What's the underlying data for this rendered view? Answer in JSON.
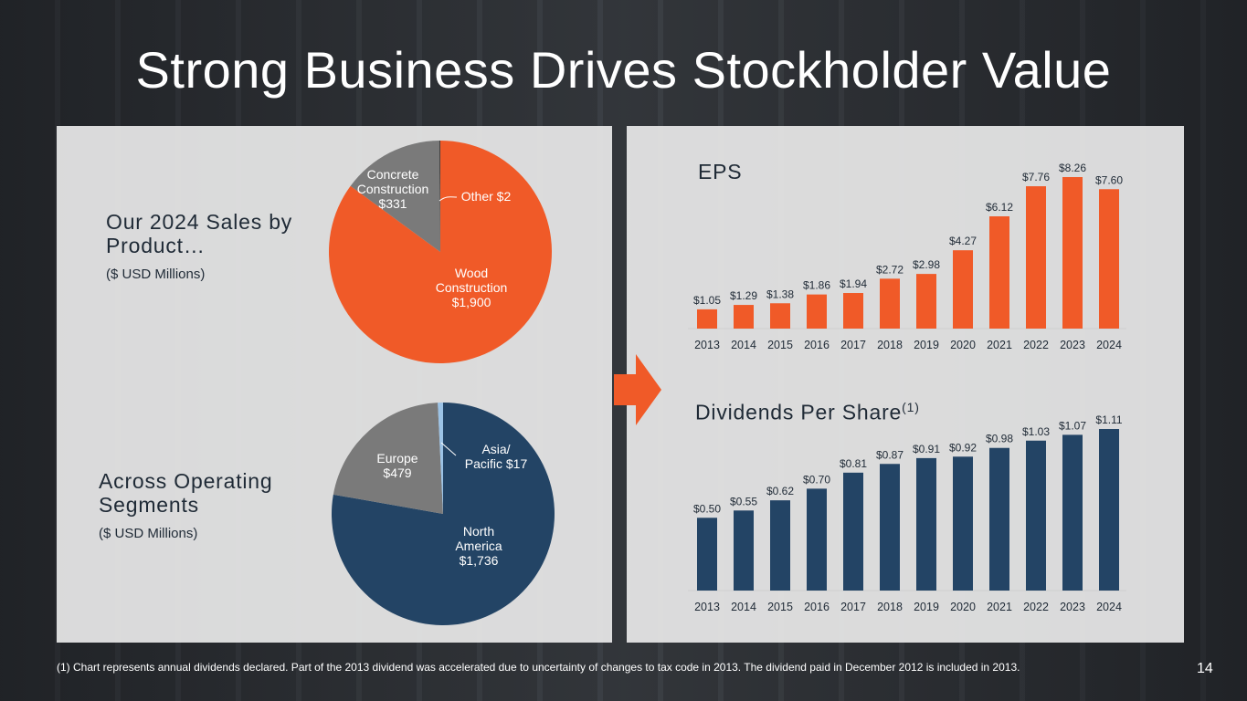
{
  "title": "Strong Business Drives Stockholder Value",
  "left": {
    "sales_heading": "Our 2024 Sales by Product…",
    "sales_unit": "($ USD Millions)",
    "segments_heading": "Across Operating Segments",
    "segments_unit": "($ USD Millions)"
  },
  "right": {
    "eps_title": "EPS",
    "dps_title": "Dividends Per Share",
    "dps_title_sup": "(1)"
  },
  "footnote": "(1) Chart represents annual dividends declared. Part of the 2013 dividend was accelerated due to uncertainty of changes to tax code in 2013. The dividend paid in December 2012 is included in 2013.",
  "page_number": "14",
  "colors": {
    "orange": "#f05a28",
    "navy": "#234465",
    "gray": "#7a7a7a",
    "light_blue": "#9cc3e6",
    "black": "#111111"
  },
  "chart_data": [
    {
      "type": "pie",
      "title": "Our 2024 Sales by Product…",
      "slices": [
        {
          "label": "Wood Construction",
          "value": 1900,
          "value_label": "$1,900",
          "color": "#f05a28"
        },
        {
          "label": "Concrete Construction",
          "value": 331,
          "value_label": "$331",
          "color": "#7a7a7a"
        },
        {
          "label": "Other",
          "value": 2,
          "value_label": "$2",
          "color": "#111111"
        }
      ]
    },
    {
      "type": "pie",
      "title": "Across Operating Segments",
      "slices": [
        {
          "label": "North America",
          "value": 1736,
          "value_label": "$1,736",
          "color": "#234465"
        },
        {
          "label": "Europe",
          "value": 479,
          "value_label": "$479",
          "color": "#7a7a7a"
        },
        {
          "label": "Asia/ Pacific",
          "value": 17,
          "value_label": "$17",
          "color": "#9cc3e6"
        }
      ]
    },
    {
      "type": "bar",
      "title": "EPS",
      "categories": [
        "2013",
        "2014",
        "2015",
        "2016",
        "2017",
        "2018",
        "2019",
        "2020",
        "2021",
        "2022",
        "2023",
        "2024"
      ],
      "values": [
        1.05,
        1.29,
        1.38,
        1.86,
        1.94,
        2.72,
        2.98,
        4.27,
        6.12,
        7.76,
        8.26,
        7.6
      ],
      "labels": [
        "$1.05",
        "$1.29",
        "$1.38",
        "$1.86",
        "$1.94",
        "$2.72",
        "$2.98",
        "$4.27",
        "$6.12",
        "$7.76",
        "$8.26",
        "$7.60"
      ],
      "color": "#f05a28"
    },
    {
      "type": "bar",
      "title": "Dividends Per Share",
      "categories": [
        "2013",
        "2014",
        "2015",
        "2016",
        "2017",
        "2018",
        "2019",
        "2020",
        "2021",
        "2022",
        "2023",
        "2024"
      ],
      "values": [
        0.5,
        0.55,
        0.62,
        0.7,
        0.81,
        0.87,
        0.91,
        0.92,
        0.98,
        1.03,
        1.07,
        1.11
      ],
      "labels": [
        "$0.50",
        "$0.55",
        "$0.62",
        "$0.70",
        "$0.81",
        "$0.87",
        "$0.91",
        "$0.92",
        "$0.98",
        "$1.03",
        "$1.07",
        "$1.11"
      ],
      "color": "#234465"
    }
  ]
}
